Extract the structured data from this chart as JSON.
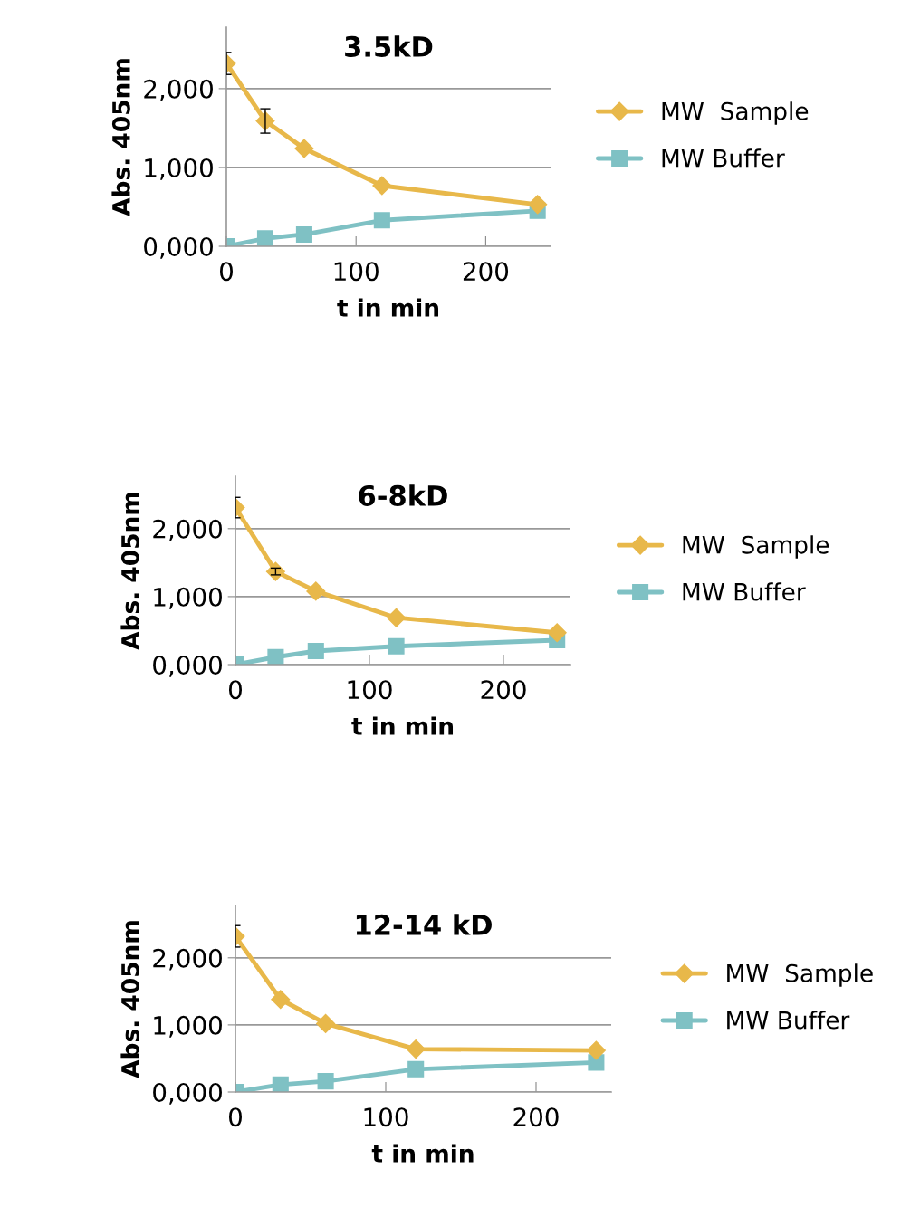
{
  "chart_data": [
    {
      "type": "line",
      "title": "3.5kD",
      "xlabel": "t in min",
      "ylabel": "Abs. 405nm",
      "x": [
        0,
        30,
        60,
        120,
        240
      ],
      "xlim": [
        0,
        250
      ],
      "xticks": [
        0,
        100,
        200
      ],
      "ylim": [
        0,
        2.78
      ],
      "yticks": [
        {
          "value": 0,
          "label": "0,000"
        },
        {
          "value": 1,
          "label": "1,000"
        },
        {
          "value": 2,
          "label": "2,000"
        }
      ],
      "grid": "y",
      "legend": "right",
      "series": [
        {
          "name": "MW  Sample",
          "color": "#e8b84a",
          "marker": "diamond",
          "values": [
            2.32,
            1.59,
            1.24,
            0.77,
            0.53
          ],
          "errors": [
            0.14,
            0.155,
            null,
            null,
            null
          ]
        },
        {
          "name": "MW Buffer",
          "color": "#7fc1c4",
          "marker": "square",
          "values": [
            0,
            0.1,
            0.15,
            0.33,
            0.45
          ]
        }
      ]
    },
    {
      "type": "line",
      "title": "6-8kD",
      "xlabel": "t in min",
      "ylabel": "Abs. 405nm",
      "x": [
        0,
        30,
        60,
        120,
        240
      ],
      "xlim": [
        0,
        250
      ],
      "xticks": [
        0,
        100,
        200
      ],
      "ylim": [
        0,
        2.77
      ],
      "yticks": [
        {
          "value": 0,
          "label": "0,000"
        },
        {
          "value": 1,
          "label": "1,000"
        },
        {
          "value": 2,
          "label": "2,000"
        }
      ],
      "grid": "y",
      "legend": "right",
      "series": [
        {
          "name": "MW  Sample",
          "color": "#e8b84a",
          "marker": "diamond",
          "values": [
            2.31,
            1.37,
            1.08,
            0.69,
            0.47
          ],
          "errors": [
            0.15,
            0.05,
            null,
            null,
            null
          ]
        },
        {
          "name": "MW Buffer",
          "color": "#7fc1c4",
          "marker": "square",
          "values": [
            0,
            0.11,
            0.2,
            0.27,
            0.36
          ]
        }
      ]
    },
    {
      "type": "line",
      "title": "12-14 kD",
      "xlabel": "t in min",
      "ylabel": "Abs. 405nm",
      "x": [
        0,
        30,
        60,
        120,
        240
      ],
      "xlim": [
        0,
        250
      ],
      "xticks": [
        0,
        100,
        200
      ],
      "ylim": [
        0,
        2.78
      ],
      "yticks": [
        {
          "value": 0,
          "label": "0,000"
        },
        {
          "value": 1,
          "label": "1,000"
        },
        {
          "value": 2,
          "label": "2,000"
        }
      ],
      "grid": "y",
      "legend": "right",
      "series": [
        {
          "name": "MW  Sample",
          "color": "#e8b84a",
          "marker": "diamond",
          "values": [
            2.32,
            1.38,
            1.02,
            0.64,
            0.62
          ],
          "errors": [
            0.16,
            null,
            null,
            null,
            null
          ]
        },
        {
          "name": "MW Buffer",
          "color": "#7fc1c4",
          "marker": "square",
          "values": [
            0,
            0.11,
            0.16,
            0.34,
            0.44
          ]
        }
      ]
    }
  ]
}
